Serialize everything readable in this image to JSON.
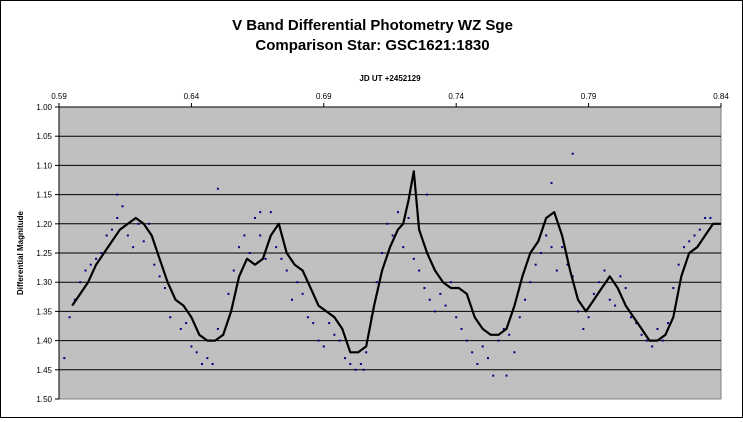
{
  "chart_data": {
    "type": "scatter",
    "title": "V Band Differential Photometry WZ Sge",
    "subtitle": "Comparison Star: GSC1621:1830",
    "xlabel": "JD UT +2452129",
    "ylabel": "Differential Magnitude",
    "xlim": [
      0.59,
      0.84
    ],
    "ylim": [
      1.0,
      1.5
    ],
    "y_inverted": true,
    "x_axis_position": "top",
    "x_ticks": [
      "0.59",
      "0.64",
      "0.69",
      "0.74",
      "0.79",
      "0.84"
    ],
    "y_ticks": [
      "1.00",
      "1.05",
      "1.10",
      "1.15",
      "1.20",
      "1.25",
      "1.30",
      "1.35",
      "1.40",
      "1.45",
      "1.50"
    ],
    "grid": "horizontal",
    "plot_background": "#c0c0c0",
    "point_color": "#000080",
    "line_color": "#000000",
    "series": [
      {
        "type": "line",
        "x": [
          0.595,
          0.598,
          0.601,
          0.604,
          0.607,
          0.61,
          0.613,
          0.616,
          0.619,
          0.622,
          0.625,
          0.628,
          0.631,
          0.634,
          0.637,
          0.64,
          0.643,
          0.646,
          0.649,
          0.652,
          0.655,
          0.658,
          0.661,
          0.664,
          0.667,
          0.67,
          0.673,
          0.676,
          0.679,
          0.682,
          0.685,
          0.688,
          0.691,
          0.694,
          0.697,
          0.7,
          0.703,
          0.706,
          0.709,
          0.712,
          0.715,
          0.718,
          0.72,
          0.722,
          0.724,
          0.726,
          0.729,
          0.732,
          0.735,
          0.738,
          0.741,
          0.744,
          0.747,
          0.75,
          0.753,
          0.756,
          0.759,
          0.762,
          0.765,
          0.768,
          0.771,
          0.774,
          0.777,
          0.78,
          0.783,
          0.786,
          0.789,
          0.792,
          0.795,
          0.798,
          0.801,
          0.804,
          0.807,
          0.81,
          0.813,
          0.816,
          0.819,
          0.822,
          0.825,
          0.828,
          0.831,
          0.834,
          0.837,
          0.84
        ],
        "y": [
          1.34,
          1.32,
          1.3,
          1.27,
          1.25,
          1.23,
          1.21,
          1.2,
          1.19,
          1.2,
          1.22,
          1.26,
          1.3,
          1.33,
          1.34,
          1.36,
          1.39,
          1.4,
          1.4,
          1.39,
          1.35,
          1.29,
          1.26,
          1.27,
          1.26,
          1.22,
          1.2,
          1.25,
          1.27,
          1.28,
          1.31,
          1.34,
          1.35,
          1.36,
          1.38,
          1.42,
          1.42,
          1.41,
          1.34,
          1.28,
          1.24,
          1.21,
          1.2,
          1.16,
          1.11,
          1.21,
          1.25,
          1.28,
          1.3,
          1.31,
          1.31,
          1.32,
          1.36,
          1.38,
          1.39,
          1.39,
          1.38,
          1.34,
          1.29,
          1.25,
          1.23,
          1.19,
          1.18,
          1.22,
          1.28,
          1.33,
          1.35,
          1.33,
          1.31,
          1.29,
          1.31,
          1.34,
          1.36,
          1.38,
          1.4,
          1.4,
          1.39,
          1.36,
          1.29,
          1.25,
          1.24,
          1.22,
          1.2,
          1.2
        ]
      },
      {
        "type": "scatter",
        "x": [
          0.592,
          0.594,
          0.596,
          0.598,
          0.6,
          0.602,
          0.604,
          0.606,
          0.608,
          0.61,
          0.612,
          0.614,
          0.616,
          0.618,
          0.62,
          0.622,
          0.624,
          0.626,
          0.628,
          0.63,
          0.632,
          0.634,
          0.636,
          0.638,
          0.64,
          0.642,
          0.644,
          0.646,
          0.648,
          0.65,
          0.652,
          0.654,
          0.656,
          0.658,
          0.66,
          0.662,
          0.664,
          0.666,
          0.668,
          0.67,
          0.672,
          0.674,
          0.676,
          0.678,
          0.68,
          0.682,
          0.684,
          0.686,
          0.688,
          0.69,
          0.692,
          0.694,
          0.696,
          0.698,
          0.7,
          0.702,
          0.704,
          0.706,
          0.708,
          0.71,
          0.712,
          0.714,
          0.716,
          0.718,
          0.72,
          0.722,
          0.724,
          0.726,
          0.728,
          0.73,
          0.732,
          0.734,
          0.736,
          0.738,
          0.74,
          0.742,
          0.744,
          0.746,
          0.748,
          0.75,
          0.752,
          0.754,
          0.756,
          0.758,
          0.76,
          0.762,
          0.764,
          0.766,
          0.768,
          0.77,
          0.772,
          0.774,
          0.776,
          0.778,
          0.78,
          0.782,
          0.784,
          0.786,
          0.788,
          0.79,
          0.792,
          0.794,
          0.796,
          0.798,
          0.8,
          0.802,
          0.804,
          0.806,
          0.808,
          0.81,
          0.812,
          0.814,
          0.816,
          0.818,
          0.82,
          0.822,
          0.824,
          0.826,
          0.828,
          0.83,
          0.832,
          0.834,
          0.836,
          0.838,
          0.612,
          0.65,
          0.666,
          0.705,
          0.729,
          0.759,
          0.776,
          0.784
        ],
        "y": [
          1.43,
          1.36,
          1.33,
          1.3,
          1.28,
          1.27,
          1.26,
          1.25,
          1.22,
          1.21,
          1.19,
          1.17,
          1.22,
          1.24,
          1.2,
          1.23,
          1.2,
          1.27,
          1.29,
          1.31,
          1.36,
          1.33,
          1.38,
          1.37,
          1.41,
          1.42,
          1.44,
          1.43,
          1.44,
          1.38,
          1.39,
          1.32,
          1.28,
          1.24,
          1.22,
          1.25,
          1.19,
          1.22,
          1.26,
          1.18,
          1.24,
          1.26,
          1.28,
          1.33,
          1.3,
          1.32,
          1.36,
          1.37,
          1.4,
          1.41,
          1.37,
          1.39,
          1.4,
          1.43,
          1.44,
          1.45,
          1.44,
          1.42,
          1.36,
          1.3,
          1.25,
          1.2,
          1.22,
          1.18,
          1.24,
          1.19,
          1.26,
          1.28,
          1.31,
          1.33,
          1.35,
          1.32,
          1.34,
          1.3,
          1.36,
          1.38,
          1.4,
          1.42,
          1.44,
          1.41,
          1.43,
          1.46,
          1.4,
          1.38,
          1.39,
          1.42,
          1.36,
          1.33,
          1.3,
          1.27,
          1.25,
          1.22,
          1.24,
          1.28,
          1.24,
          1.27,
          1.29,
          1.35,
          1.38,
          1.36,
          1.32,
          1.3,
          1.28,
          1.33,
          1.34,
          1.29,
          1.31,
          1.36,
          1.37,
          1.39,
          1.4,
          1.41,
          1.38,
          1.4,
          1.37,
          1.31,
          1.27,
          1.24,
          1.23,
          1.22,
          1.21,
          1.19,
          1.19,
          1.2,
          1.15,
          1.14,
          1.18,
          1.45,
          1.15,
          1.46,
          1.13,
          1.08
        ]
      }
    ]
  }
}
